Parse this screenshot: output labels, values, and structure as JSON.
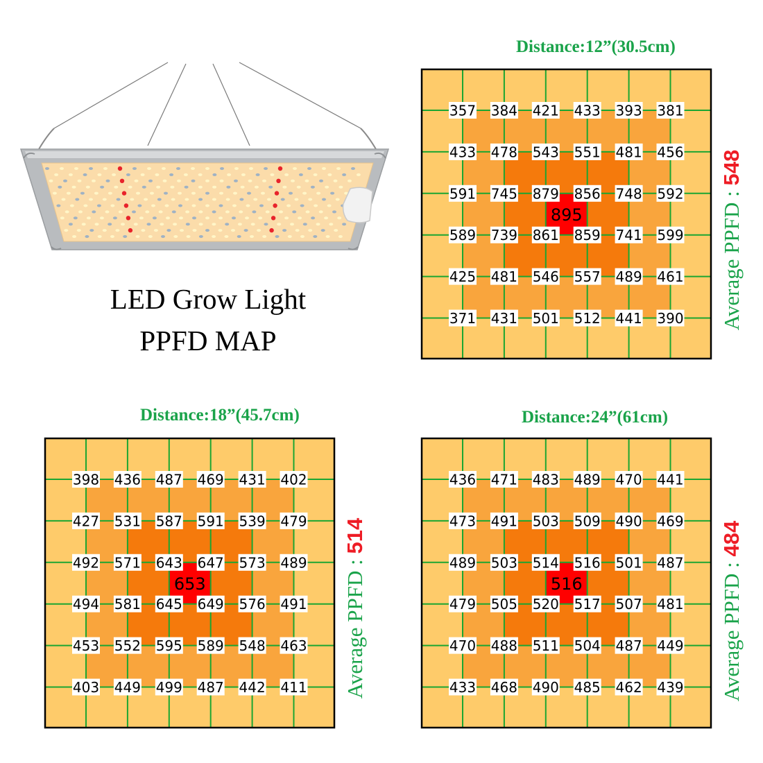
{
  "title": {
    "line1": "LED Grow Light",
    "line2": "PPFD MAP"
  },
  "colors": {
    "zone_outer": "#fecb6a",
    "zone_ring": "#f9a53d",
    "zone_inner": "#f57a0c",
    "zone_center": "#ff0000",
    "grid": "#1aa632",
    "distance_text": "#1aa34a",
    "average_value": "#ee1c25"
  },
  "chart_data": [
    {
      "type": "heatmap",
      "title": "Distance:12”(30.5cm)",
      "average_label": "Average PPFD : ",
      "average_value": "548",
      "center_value": 895,
      "grid": [
        [
          357,
          384,
          421,
          433,
          393,
          381
        ],
        [
          433,
          478,
          543,
          551,
          481,
          456
        ],
        [
          591,
          745,
          879,
          856,
          748,
          592
        ],
        [
          589,
          739,
          861,
          859,
          741,
          599
        ],
        [
          425,
          481,
          546,
          557,
          489,
          461
        ],
        [
          371,
          431,
          501,
          512,
          441,
          390
        ]
      ]
    },
    {
      "type": "heatmap",
      "title": "Distance:18”(45.7cm)",
      "average_label": "Average PPFD : ",
      "average_value": "514",
      "center_value": 653,
      "grid": [
        [
          398,
          436,
          487,
          469,
          431,
          402
        ],
        [
          427,
          531,
          587,
          591,
          539,
          479
        ],
        [
          492,
          571,
          643,
          647,
          573,
          489
        ],
        [
          494,
          581,
          645,
          649,
          576,
          491
        ],
        [
          453,
          552,
          595,
          589,
          548,
          463
        ],
        [
          403,
          449,
          499,
          487,
          442,
          411
        ]
      ]
    },
    {
      "type": "heatmap",
      "title": "Distance:24”(61cm)",
      "average_label": "Average PPFD : ",
      "average_value": "484",
      "center_value": 516,
      "grid": [
        [
          436,
          471,
          483,
          489,
          470,
          441
        ],
        [
          473,
          491,
          503,
          509,
          490,
          469
        ],
        [
          489,
          503,
          514,
          516,
          501,
          487
        ],
        [
          479,
          505,
          520,
          517,
          507,
          481
        ],
        [
          470,
          488,
          511,
          504,
          487,
          449
        ],
        [
          433,
          468,
          490,
          485,
          462,
          439
        ]
      ]
    }
  ]
}
